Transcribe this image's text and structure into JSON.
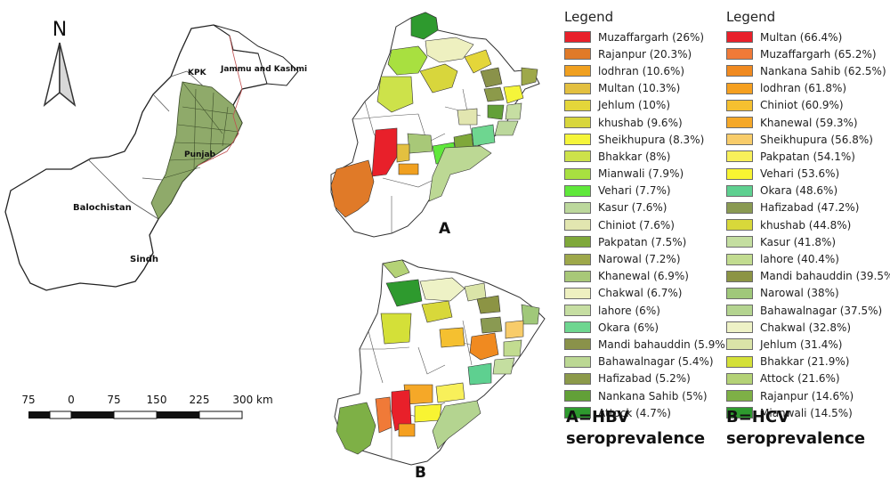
{
  "north_arrow": {
    "label": "N"
  },
  "overview_map": {
    "labels": [
      "KPK",
      "Jammu and Kashmir",
      "Punjab",
      "Balochistan",
      "Sindh"
    ],
    "highlight_color": "#8faa6a"
  },
  "scale_bar": {
    "ticks": [
      "75",
      "0",
      "75",
      "150",
      "225",
      "300 km"
    ]
  },
  "panel_a": {
    "letter": "A",
    "legend_title": "Legend",
    "caption_line1": "A=HBV",
    "caption_line2": "seroprevalence",
    "items": [
      {
        "label": "Muzaffargarh (26%)",
        "color": "#e8202a"
      },
      {
        "label": "Rajanpur (20.3%)",
        "color": "#e07a28"
      },
      {
        "label": "lodhran (10.6%)",
        "color": "#f0a020"
      },
      {
        "label": "Multan (10.3%)",
        "color": "#e3c040"
      },
      {
        "label": "Jehlum (10%)",
        "color": "#e4d63a"
      },
      {
        "label": "khushab (9.6%)",
        "color": "#d8d63c"
      },
      {
        "label": "Sheikhupura (8.3%)",
        "color": "#f5f53a"
      },
      {
        "label": "Bhakkar (8%)",
        "color": "#cde24a"
      },
      {
        "label": "Mianwali (7.9%)",
        "color": "#a8e040"
      },
      {
        "label": "Vehari (7.7%)",
        "color": "#5fe83a"
      },
      {
        "label": "Kasur (7.6%)",
        "color": "#bcd89c"
      },
      {
        "label": "Chiniot (7.6%)",
        "color": "#e2e6b0"
      },
      {
        "label": "Pakpatan (7.5%)",
        "color": "#7fa83a"
      },
      {
        "label": "Narowal (7.2%)",
        "color": "#9ea84a"
      },
      {
        "label": "Khanewal (6.9%)",
        "color": "#a8c878"
      },
      {
        "label": "Chakwal (6.7%)",
        "color": "#eef0c0"
      },
      {
        "label": "lahore (6%)",
        "color": "#c6dea2"
      },
      {
        "label": "Okara (6%)",
        "color": "#6ed690"
      },
      {
        "label": "Mandi bahauddin (5.9%)",
        "color": "#8a924a"
      },
      {
        "label": "Bahawalnagar (5.4%)",
        "color": "#bcd894"
      },
      {
        "label": "Hafizabad (5.2%)",
        "color": "#8c9a4a"
      },
      {
        "label": "Nankana Sahib (5%)",
        "color": "#62a038"
      },
      {
        "label": "Attock (4.7%)",
        "color": "#2e9a2e"
      }
    ]
  },
  "panel_b": {
    "letter": "B",
    "legend_title": "Legend",
    "caption_line1": "B=HCV",
    "caption_line2": "seroprevalence",
    "items": [
      {
        "label": "Multan (66.4%)",
        "color": "#e8202a"
      },
      {
        "label": "Muzaffargarh (65.2%)",
        "color": "#f07a38"
      },
      {
        "label": "Nankana Sahib (62.5%)",
        "color": "#f08a20"
      },
      {
        "label": "lodhran (61.8%)",
        "color": "#f5a020"
      },
      {
        "label": "Chiniot (60.9%)",
        "color": "#f5c030"
      },
      {
        "label": "Khanewal (59.3%)",
        "color": "#f5a828"
      },
      {
        "label": "Sheikhupura (56.8%)",
        "color": "#f8cc6a"
      },
      {
        "label": "Pakpatan (54.1%)",
        "color": "#f8f05a"
      },
      {
        "label": "Vehari (53.6%)",
        "color": "#f8f432"
      },
      {
        "label": "Okara (48.6%)",
        "color": "#5ed090"
      },
      {
        "label": "Hafizabad (47.2%)",
        "color": "#8a9a52"
      },
      {
        "label": "khushab (44.8%)",
        "color": "#d8d83a"
      },
      {
        "label": "Kasur (41.8%)",
        "color": "#c4dea0"
      },
      {
        "label": "lahore (40.4%)",
        "color": "#c2dc90"
      },
      {
        "label": "Mandi bahauddin (39.5%)",
        "color": "#8c9444"
      },
      {
        "label": "Narowal (38%)",
        "color": "#a0c87a"
      },
      {
        "label": "Bahawalnagar (37.5%)",
        "color": "#b4d490"
      },
      {
        "label": "Chakwal (32.8%)",
        "color": "#eef2c6"
      },
      {
        "label": "Jehlum (31.4%)",
        "color": "#dae4a8"
      },
      {
        "label": "Bhakkar (21.9%)",
        "color": "#d4e038"
      },
      {
        "label": "Attock (21.6%)",
        "color": "#b4d276"
      },
      {
        "label": "Rajanpur (14.6%)",
        "color": "#7eb046"
      },
      {
        "label": "Mianwali (14.5%)",
        "color": "#2e9a2e"
      }
    ]
  }
}
